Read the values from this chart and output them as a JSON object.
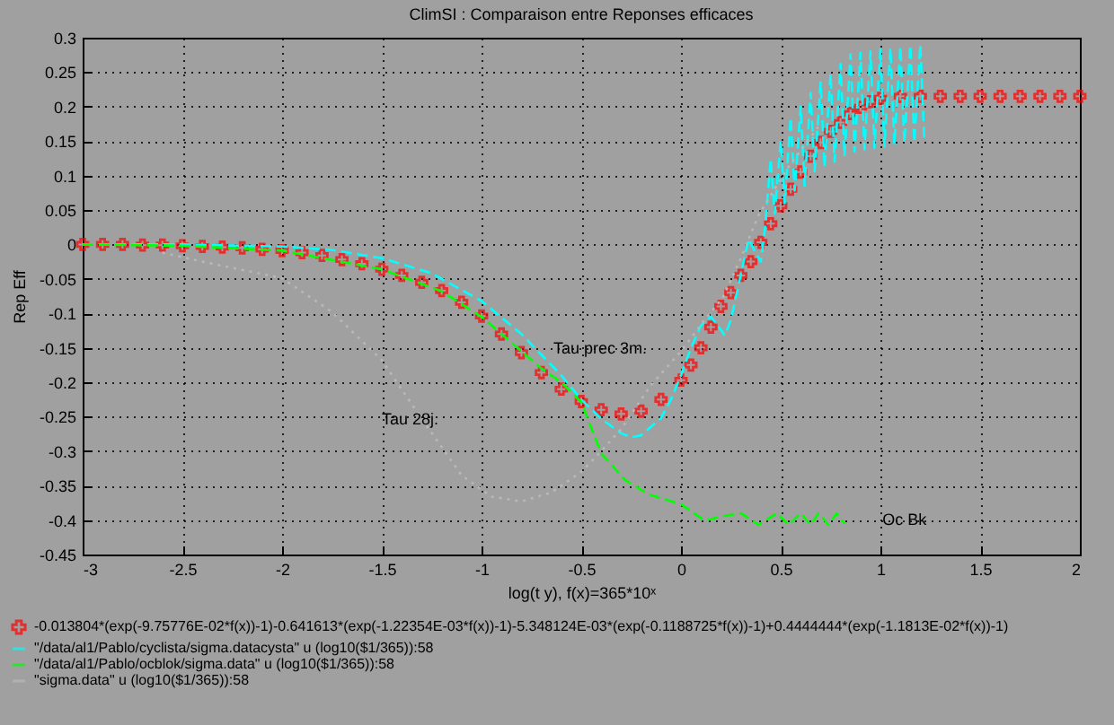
{
  "chart_data": {
    "type": "line",
    "title": "ClimSI : Comparaison entre Reponses efficaces",
    "xlabel": "log(t y), f(x)=365*10ˣ",
    "ylabel": "Rep Eff",
    "xlim": [
      -3,
      2
    ],
    "xticks": [
      -3,
      -2.5,
      -2,
      -1.5,
      -1,
      -0.5,
      0,
      0.5,
      1,
      1.5,
      2
    ],
    "ylim": [
      -0.45,
      0.3
    ],
    "yticks": [
      -0.45,
      -0.4,
      -0.35,
      -0.3,
      -0.25,
      -0.2,
      -0.15,
      -0.1,
      -0.05,
      0,
      0.05,
      0.1,
      0.15,
      0.2,
      0.25,
      0.3
    ],
    "grid": true,
    "legend": "bottom",
    "annotations": [
      "Tau prec 3m.",
      "Tau 28j.",
      "Oc Bk"
    ],
    "series": [
      {
        "name": "-0.013804*(exp(-9.75776E-02*f(x))-1)-0.641613*(exp(-1.22354E-03*f(x))-1)-5.348124E-03*(exp(-0.1188725*f(x))-1)+0.4444444*(exp(-1.1813E-02*f(x))-1)",
        "type": "scatter",
        "marker": "cross",
        "color": "#ff0000",
        "x": [
          -3,
          -2.9,
          -2.8,
          -2.7,
          -2.6,
          -2.5,
          -2.4,
          -2.3,
          -2.2,
          -2.1,
          -2,
          -1.9,
          -1.8,
          -1.7,
          -1.6,
          -1.5,
          -1.4,
          -1.3,
          -1.2,
          -1.1,
          -1,
          -0.9,
          -0.8,
          -0.7,
          -0.6,
          -0.5,
          -0.4,
          -0.3,
          -0.2,
          -0.1,
          0,
          0.05,
          0.1,
          0.15,
          0.2,
          0.25,
          0.3,
          0.35,
          0.4,
          0.45,
          0.5,
          0.55,
          0.6,
          0.65,
          0.7,
          0.75,
          0.8,
          0.85,
          0.9,
          0.95,
          1,
          1.1,
          1.2,
          1.3,
          1.4,
          1.5,
          1.6,
          1.7,
          1.8,
          1.9,
          2
        ],
        "values": [
          0,
          0,
          0,
          -0.001,
          -0.001,
          -0.002,
          -0.003,
          -0.004,
          -0.005,
          -0.007,
          -0.009,
          -0.012,
          -0.016,
          -0.022,
          -0.028,
          -0.036,
          -0.045,
          -0.055,
          -0.067,
          -0.084,
          -0.104,
          -0.13,
          -0.157,
          -0.186,
          -0.21,
          -0.228,
          -0.24,
          -0.246,
          -0.242,
          -0.225,
          -0.197,
          -0.175,
          -0.15,
          -0.12,
          -0.09,
          -0.07,
          -0.045,
          -0.025,
          0.003,
          0.03,
          0.056,
          0.08,
          0.105,
          0.128,
          0.148,
          0.164,
          0.177,
          0.19,
          0.199,
          0.207,
          0.212,
          0.215,
          0.215,
          0.215,
          0.215,
          0.215,
          0.215,
          0.215,
          0.215,
          0.215,
          0.215
        ]
      },
      {
        "name": "\"/data/al1/Pablo/cyclista/sigma.datacysta\" u (log10($1/365)):58",
        "line_style": "dashed",
        "color": "#00ffff",
        "x": [
          -3,
          -2.5,
          -2,
          -1.75,
          -1.5,
          -1.25,
          -1,
          -0.8,
          -0.6,
          -0.5,
          -0.4,
          -0.3,
          -0.25,
          -0.2,
          -0.1,
          -0.05,
          0,
          0.05,
          0.1,
          0.15,
          0.19,
          0.22,
          0.25,
          0.28,
          0.31,
          0.34,
          0.37,
          0.4,
          0.42,
          0.45,
          0.47,
          0.5,
          0.52,
          0.55,
          0.57,
          0.6,
          0.62,
          0.65,
          0.67,
          0.7,
          0.72,
          0.75,
          0.77,
          0.8,
          0.82,
          0.85,
          0.87,
          0.9,
          0.92,
          0.95,
          0.97,
          1,
          1.02,
          1.05,
          1.07,
          1.1,
          1.12,
          1.15,
          1.17,
          1.2,
          1.22
        ],
        "values": [
          0,
          0,
          -0.003,
          -0.008,
          -0.02,
          -0.042,
          -0.082,
          -0.13,
          -0.19,
          -0.225,
          -0.253,
          -0.274,
          -0.28,
          -0.277,
          -0.252,
          -0.225,
          -0.19,
          -0.15,
          -0.118,
          -0.105,
          -0.12,
          -0.132,
          -0.11,
          -0.07,
          -0.03,
          0.008,
          -0.01,
          -0.025,
          0.02,
          0.124,
          0.045,
          0.15,
          0.06,
          0.184,
          0.078,
          0.2,
          0.085,
          0.22,
          0.106,
          0.235,
          0.112,
          0.248,
          0.12,
          0.262,
          0.128,
          0.276,
          0.135,
          0.278,
          0.138,
          0.28,
          0.14,
          0.283,
          0.142,
          0.285,
          0.145,
          0.287,
          0.147,
          0.289,
          0.148,
          0.29,
          0.149
        ]
      },
      {
        "name": "\"/data/al1/Pablo/ocblok/sigma.data\" u (log10($1/365)):58",
        "line_style": "dashed",
        "color": "#00ff00",
        "x": [
          -3,
          -2.5,
          -2,
          -1.5,
          -1.2,
          -1,
          -0.9,
          -0.8,
          -0.7,
          -0.6,
          -0.5,
          -0.4,
          -0.28,
          -0.16,
          0,
          0.12,
          0.2,
          0.3,
          0.39,
          0.48,
          0.54,
          0.6,
          0.65,
          0.69,
          0.74,
          0.78,
          0.82
        ],
        "values": [
          0,
          -0.002,
          -0.009,
          -0.036,
          -0.068,
          -0.105,
          -0.13,
          -0.155,
          -0.18,
          -0.2,
          -0.229,
          -0.303,
          -0.342,
          -0.363,
          -0.377,
          -0.401,
          -0.395,
          -0.39,
          -0.407,
          -0.39,
          -0.407,
          -0.39,
          -0.407,
          -0.39,
          -0.407,
          -0.39,
          -0.405
        ]
      },
      {
        "name": "\"sigma.data\" u (log10($1/365)):58",
        "line_style": "dotted",
        "color": "#b8b8b8",
        "x": [
          -2.6,
          -2.4,
          -2.2,
          -2,
          -1.75,
          -1.5,
          -1.3,
          -1.1,
          -0.95,
          -0.8,
          -0.65,
          -0.5,
          -0.4,
          -0.3,
          -0.15,
          0,
          0.12,
          0.21,
          0.3,
          0.39,
          0.54,
          0.7
        ],
        "values": [
          -0.012,
          -0.025,
          -0.037,
          -0.049,
          -0.098,
          -0.168,
          -0.253,
          -0.335,
          -0.366,
          -0.373,
          -0.36,
          -0.33,
          -0.3,
          -0.268,
          -0.204,
          -0.155,
          -0.109,
          -0.077,
          -0.02,
          0.043,
          0.113,
          0.175
        ]
      }
    ]
  }
}
